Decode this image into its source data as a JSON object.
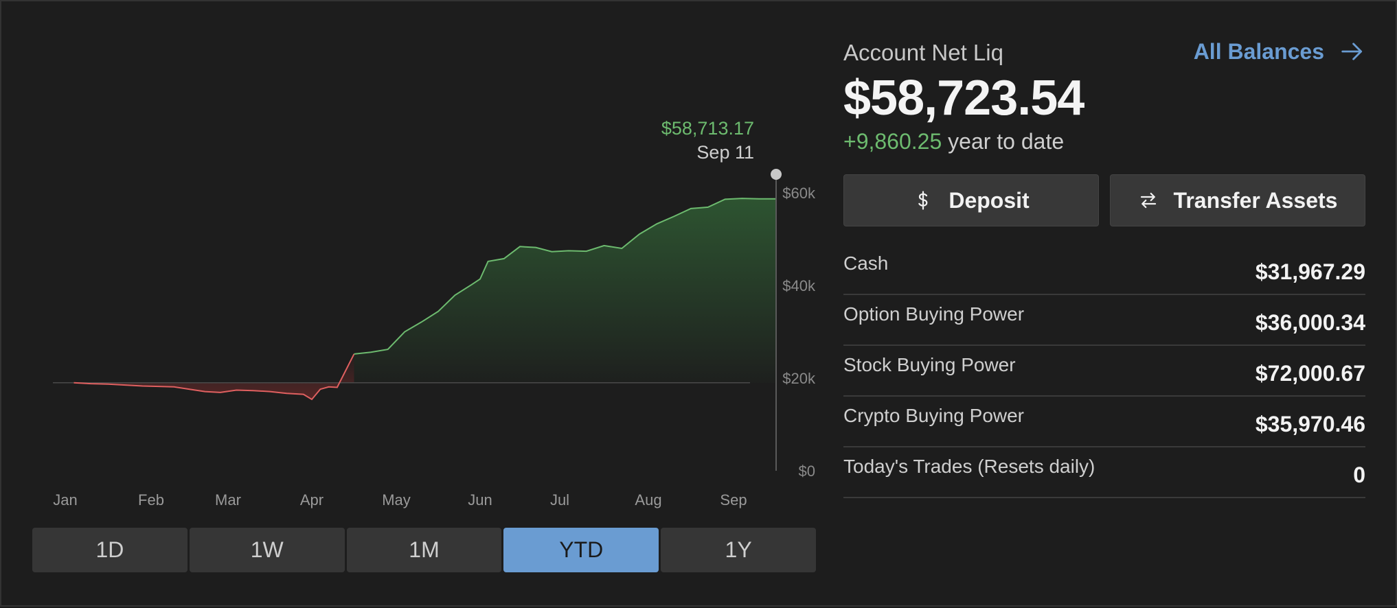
{
  "chart": {
    "tooltip_value": "$58,713.17",
    "tooltip_date": "Sep 11",
    "y_ticks": [
      "$60k",
      "$40k",
      "$20k",
      "$0"
    ],
    "x_ticks": [
      "Jan",
      "Feb",
      "Mar",
      "Apr",
      "May",
      "Jun",
      "Jul",
      "Aug",
      "Sep"
    ],
    "positive_color": "#6dbb6f",
    "negative_color": "#e06060"
  },
  "chart_data": {
    "type": "area",
    "baseline": 19000,
    "ylim": [
      0,
      62000
    ],
    "xlim": [
      0,
      8.5
    ],
    "yticks": [
      0,
      20000,
      40000,
      60000
    ],
    "ytick_labels": [
      "$0",
      "$20k",
      "$40k",
      "$60k"
    ],
    "xtick_labels": [
      "Jan",
      "Feb",
      "Mar",
      "Apr",
      "May",
      "Jun",
      "Jul",
      "Aug",
      "Sep"
    ],
    "grid": false,
    "series": [
      {
        "x": [
          0.1,
          0.3,
          0.5,
          0.7,
          0.9,
          1.1,
          1.3,
          1.5,
          1.7,
          1.9,
          2.1,
          2.3,
          2.5,
          2.7,
          2.9,
          3.0,
          3.1,
          3.2,
          3.3,
          3.5,
          3.7,
          3.9,
          4.1,
          4.3,
          4.5,
          4.7,
          4.9,
          5.0,
          5.1,
          5.3,
          5.5,
          5.7,
          5.9,
          6.1,
          6.3,
          6.5,
          6.7,
          6.9,
          7.1,
          7.3,
          7.5,
          7.7,
          7.9,
          8.1,
          8.3,
          8.5
        ],
        "y": [
          19000,
          18800,
          18700,
          18500,
          18300,
          18200,
          18100,
          17600,
          17100,
          16900,
          17400,
          17300,
          17100,
          16700,
          16500,
          15400,
          17600,
          18100,
          18000,
          25200,
          25600,
          26200,
          30000,
          32100,
          34400,
          37900,
          40200,
          41400,
          45200,
          45800,
          48400,
          48200,
          47300,
          47500,
          47400,
          48600,
          48000,
          51100,
          53300,
          54900,
          56600,
          56900,
          58600,
          58800,
          58700,
          58713
        ]
      }
    ],
    "tooltip": {
      "value": "$58,713.17",
      "date": "Sep 11"
    }
  },
  "range_buttons": [
    "1D",
    "1W",
    "1M",
    "YTD",
    "1Y"
  ],
  "active_range": "YTD",
  "account": {
    "title": "Account Net Liq",
    "all_balances_label": "All Balances",
    "net_liq": "$58,723.54",
    "ytd_change": "+9,860.25",
    "ytd_label": "year to date",
    "deposit_label": "Deposit",
    "transfer_label": "Transfer Assets",
    "balances": [
      {
        "label": "Cash",
        "value": "$31,967.29"
      },
      {
        "label": "Option Buying Power",
        "value": "$36,000.34"
      },
      {
        "label": "Stock Buying Power",
        "value": "$72,000.67"
      },
      {
        "label": "Crypto Buying Power",
        "value": "$35,970.46"
      },
      {
        "label": "Today's Trades (Resets daily)",
        "value": "0"
      }
    ]
  }
}
